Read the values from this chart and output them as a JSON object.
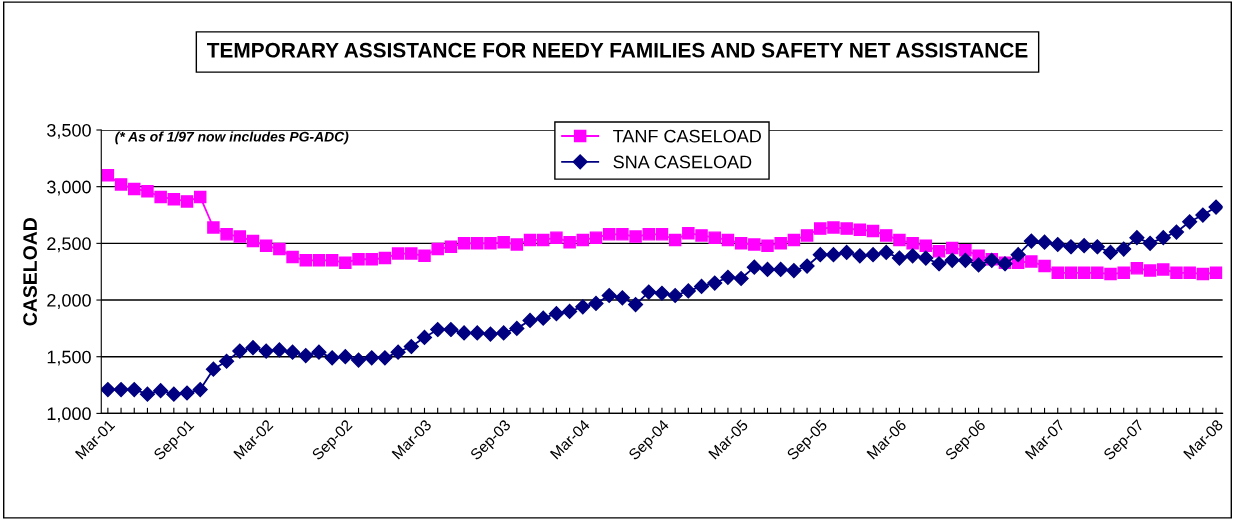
{
  "chart_data": {
    "type": "line",
    "title": "TEMPORARY ASSISTANCE FOR NEEDY FAMILIES AND SAFETY NET ASSISTANCE",
    "ylabel": "CASELOAD",
    "categories": [
      "Mar-01",
      null,
      null,
      null,
      null,
      null,
      "Sep-01",
      null,
      null,
      null,
      null,
      null,
      "Mar-02",
      null,
      null,
      null,
      null,
      null,
      "Sep-02",
      null,
      null,
      null,
      null,
      null,
      "Mar-03",
      null,
      null,
      null,
      null,
      null,
      "Sep-03",
      null,
      null,
      null,
      null,
      null,
      "Mar-04",
      null,
      null,
      null,
      null,
      null,
      "Sep-04",
      null,
      null,
      null,
      null,
      null,
      "Mar-05",
      null,
      null,
      null,
      null,
      null,
      "Sep-05",
      null,
      null,
      null,
      null,
      null,
      "Mar-06",
      null,
      null,
      null,
      null,
      null,
      "Sep-06",
      null,
      null,
      null,
      null,
      null,
      "Mar-07",
      null,
      null,
      null,
      null,
      null,
      "Sep-07",
      null,
      null,
      null,
      null,
      null,
      "Mar-08"
    ],
    "series": [
      {
        "name": "TANF CASELOAD",
        "color": "#ff00ff",
        "marker": "square",
        "values": [
          3100,
          3020,
          2980,
          2960,
          2910,
          2890,
          2870,
          2910,
          2640,
          2580,
          2560,
          2520,
          2480,
          2450,
          2380,
          2350,
          2350,
          2350,
          2330,
          2360,
          2360,
          2370,
          2410,
          2410,
          2390,
          2450,
          2470,
          2500,
          2500,
          2500,
          2510,
          2490,
          2530,
          2530,
          2550,
          2510,
          2530,
          2550,
          2580,
          2580,
          2560,
          2580,
          2580,
          2530,
          2590,
          2570,
          2550,
          2530,
          2500,
          2490,
          2480,
          2500,
          2530,
          2570,
          2630,
          2640,
          2630,
          2620,
          2610,
          2570,
          2530,
          2500,
          2480,
          2430,
          2460,
          2440,
          2390,
          2360,
          2330,
          2330,
          2340,
          2300,
          2240,
          2240,
          2240,
          2240,
          2230,
          2240,
          2280,
          2260,
          2270,
          2240,
          2240,
          2230,
          2240
        ]
      },
      {
        "name": "SNA CASELOAD",
        "color": "#000080",
        "marker": "diamond",
        "values": [
          1210,
          1210,
          1210,
          1170,
          1200,
          1170,
          1180,
          1210,
          1390,
          1460,
          1550,
          1580,
          1550,
          1560,
          1540,
          1510,
          1540,
          1490,
          1500,
          1470,
          1490,
          1490,
          1540,
          1590,
          1670,
          1740,
          1740,
          1710,
          1710,
          1700,
          1710,
          1750,
          1820,
          1840,
          1880,
          1900,
          1940,
          1970,
          2040,
          2020,
          1960,
          2070,
          2060,
          2040,
          2080,
          2120,
          2150,
          2200,
          2190,
          2290,
          2270,
          2270,
          2260,
          2300,
          2400,
          2400,
          2420,
          2390,
          2400,
          2420,
          2370,
          2390,
          2370,
          2320,
          2350,
          2350,
          2310,
          2350,
          2320,
          2400,
          2520,
          2510,
          2490,
          2470,
          2480,
          2470,
          2420,
          2450,
          2550,
          2500,
          2550,
          2600,
          2690,
          2750,
          2820
        ]
      }
    ],
    "ylim": [
      1000,
      3500
    ],
    "yticks": [
      {
        "value": 1000,
        "label": "1,000"
      },
      {
        "value": 1500,
        "label": "1,500"
      },
      {
        "value": 2000,
        "label": "2,000"
      },
      {
        "value": 2500,
        "label": "2,500"
      },
      {
        "value": 3000,
        "label": "3,000"
      },
      {
        "value": 3500,
        "label": "3,500"
      }
    ],
    "grid": "y",
    "legend": "top",
    "line_style": "solid",
    "annotations": [
      "(* As of 1/97 now includes PG-ADC)"
    ]
  }
}
